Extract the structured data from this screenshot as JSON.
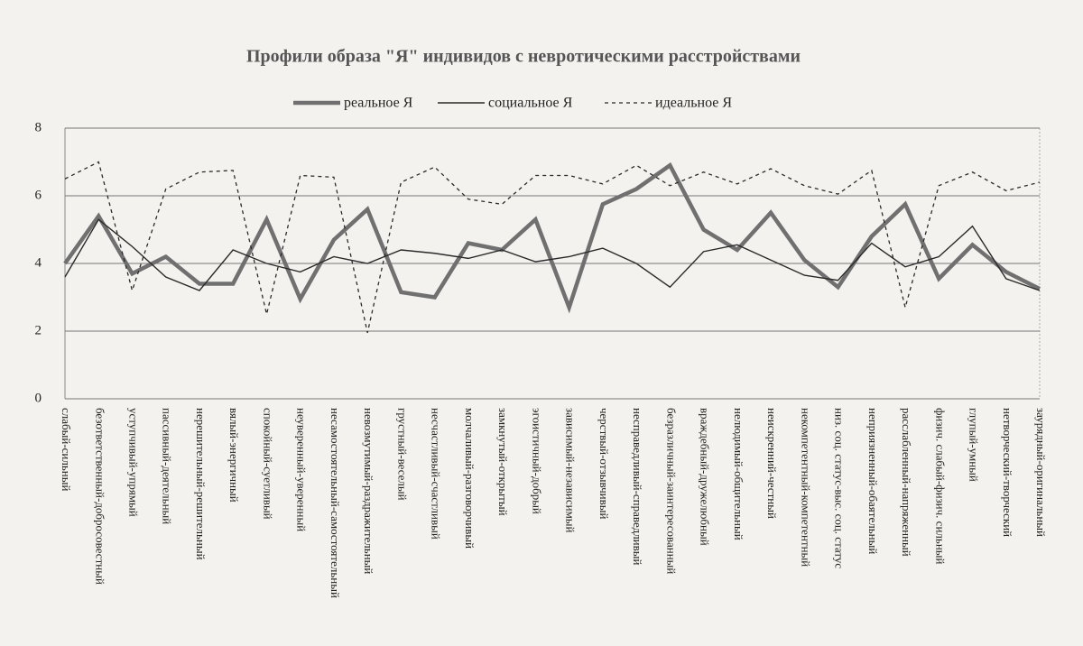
{
  "chart_data": {
    "type": "line",
    "title": "Профили образа \"Я\" индивидов с невротическими расстройствами",
    "categories": [
      "слабый-сильный",
      "безответственный-добросовестный",
      "уступчивый-упрямый",
      "пассивный-деятельный",
      "нерешительный-решительный",
      "вялый-энергичный",
      "спокойный-суетливый",
      "неуверенный-уверенный",
      "несамостоятельный-самостоятельный",
      "невозмутимый-раздражительный",
      "грустный-веселый",
      "несчастливый-счастливый",
      "молчаливый-разговорчивый",
      "замкнутый-открытый",
      "эгоистичный-добрый",
      "зависимый-независимый",
      "черствый-отзывчивый",
      "несправедливый-справедливый",
      "безразличный-заинтересованный",
      "враждебный-дружелюбный",
      "нелюдимый-общительный",
      "неискренний-честный",
      "некомпетентный-компетентный",
      "низ. соц. статус-выс. соц. статус",
      "неприязненный-обаятельный",
      "расслабленный-напряженный",
      "физич. слабый-физич. сильный",
      "глупый-умный",
      "нетворческий-творческий",
      "заурядный-оригинальный"
    ],
    "series": [
      {
        "name": "реальное Я",
        "color": "#707070",
        "width": 4.5,
        "dash": "none",
        "values": [
          4.0,
          5.4,
          3.7,
          4.2,
          3.4,
          3.4,
          5.3,
          2.95,
          4.7,
          5.6,
          3.15,
          3.0,
          4.6,
          4.4,
          5.3,
          2.7,
          5.75,
          6.2,
          6.9,
          5.0,
          4.4,
          5.5,
          4.1,
          3.3,
          4.8,
          5.75,
          3.55,
          4.55,
          3.75,
          3.25
        ]
      },
      {
        "name": "социальное Я",
        "color": "#2a2a2a",
        "width": 1.4,
        "dash": "none",
        "values": [
          3.6,
          5.3,
          4.5,
          3.6,
          3.2,
          4.4,
          4.0,
          3.75,
          4.2,
          4.0,
          4.4,
          4.3,
          4.15,
          4.4,
          4.05,
          4.2,
          4.45,
          4.0,
          3.3,
          4.35,
          4.55,
          4.1,
          3.65,
          3.5,
          4.6,
          3.9,
          4.2,
          5.1,
          3.55,
          3.2
        ]
      },
      {
        "name": "идеальное Я",
        "color": "#2a2a2a",
        "width": 1.3,
        "dash": "4 4",
        "values": [
          6.5,
          7.0,
          3.2,
          6.2,
          6.7,
          6.75,
          2.5,
          6.6,
          6.55,
          1.95,
          6.4,
          6.85,
          5.9,
          5.75,
          6.6,
          6.6,
          6.35,
          6.9,
          6.3,
          6.7,
          6.35,
          6.8,
          6.3,
          6.05,
          6.75,
          2.7,
          6.3,
          6.7,
          6.15,
          6.4
        ]
      }
    ],
    "ylim": [
      0,
      8
    ],
    "yticks": [
      0,
      2,
      4,
      6,
      8
    ],
    "grid": true
  }
}
